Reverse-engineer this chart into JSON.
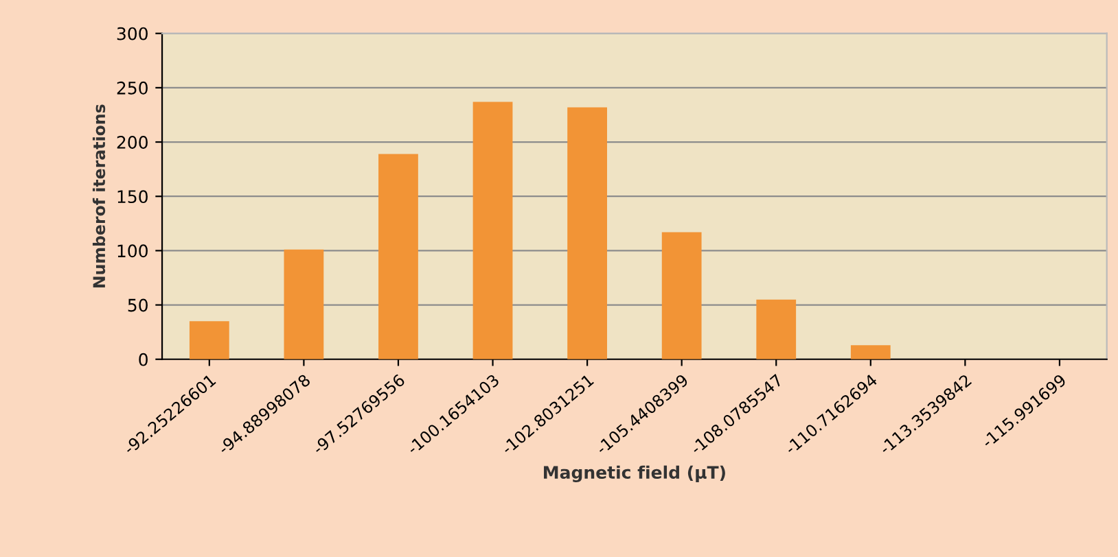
{
  "chart_data": {
    "type": "bar",
    "xlabel": "Magnetic field (µT)",
    "ylabel": "Numberof iterations",
    "categories": [
      "-92.25226601",
      "-94.88998078",
      "-97.52769556",
      "-100.1654103",
      "-102.8031251",
      "-105.4408399",
      "-108.0785547",
      "-110.7162694",
      "-113.3539842",
      "-115.991699"
    ],
    "values": [
      35,
      101,
      189,
      237,
      232,
      117,
      55,
      13,
      0,
      0
    ],
    "color": "#f29436",
    "ylim": [
      0,
      300
    ],
    "yticks": [
      0,
      50,
      100,
      150,
      200,
      250,
      300
    ],
    "grid": "y"
  }
}
